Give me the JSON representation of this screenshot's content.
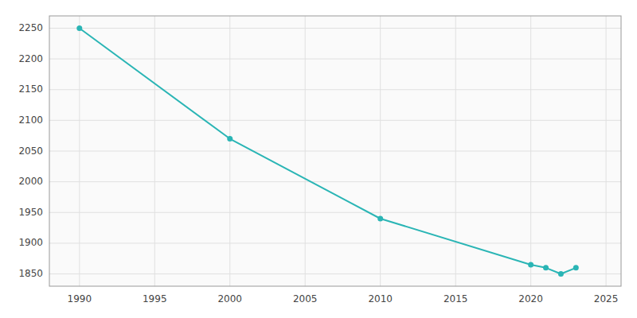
{
  "chart_data": {
    "type": "line",
    "x": [
      1990,
      2000,
      2010,
      2020,
      2021,
      2022,
      2023
    ],
    "values": [
      2250,
      2070,
      1940,
      1865,
      1860,
      1850,
      1860
    ],
    "color": "#2ab5b5",
    "marker": "circle",
    "xlim": [
      1988,
      2026
    ],
    "ylim": [
      1830,
      2270
    ],
    "xticks": [
      1990,
      1995,
      2000,
      2005,
      2010,
      2015,
      2020,
      2025
    ],
    "yticks": [
      1850,
      1900,
      1950,
      2000,
      2050,
      2100,
      2150,
      2200,
      2250
    ],
    "grid": true
  }
}
